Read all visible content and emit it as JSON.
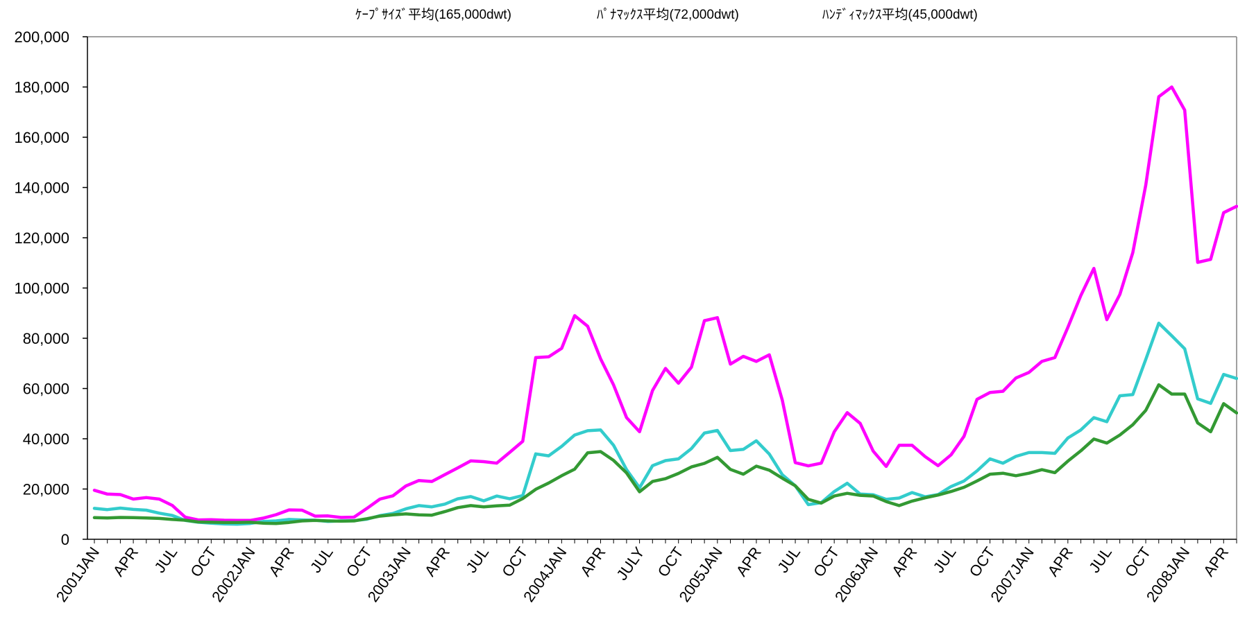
{
  "chart_data": {
    "type": "line",
    "title": "",
    "xlabel": "",
    "ylabel": "",
    "ylim": [
      0,
      200000
    ],
    "yticks": [
      0,
      20000,
      40000,
      60000,
      80000,
      100000,
      120000,
      140000,
      160000,
      180000,
      200000
    ],
    "ytick_labels": [
      "0",
      "20,000",
      "40,000",
      "60,000",
      "80,000",
      "100,000",
      "120,000",
      "140,000",
      "160,000",
      "180,000",
      "200,000"
    ],
    "x_tick_labels": [
      {
        "i": 0,
        "label": "2001JAN"
      },
      {
        "i": 3,
        "label": "APR"
      },
      {
        "i": 6,
        "label": "JUL"
      },
      {
        "i": 9,
        "label": "OCT"
      },
      {
        "i": 12,
        "label": "2002JAN"
      },
      {
        "i": 15,
        "label": "APR"
      },
      {
        "i": 18,
        "label": "JUL"
      },
      {
        "i": 21,
        "label": "OCT"
      },
      {
        "i": 24,
        "label": "2003JAN"
      },
      {
        "i": 27,
        "label": "APR"
      },
      {
        "i": 30,
        "label": "JUL"
      },
      {
        "i": 33,
        "label": "OCT"
      },
      {
        "i": 36,
        "label": "2004JAN"
      },
      {
        "i": 39,
        "label": "APR"
      },
      {
        "i": 42,
        "label": "JULY"
      },
      {
        "i": 45,
        "label": "OCT"
      },
      {
        "i": 48,
        "label": "2005JAN"
      },
      {
        "i": 51,
        "label": "APR"
      },
      {
        "i": 54,
        "label": "JUL"
      },
      {
        "i": 57,
        "label": "OCT"
      },
      {
        "i": 60,
        "label": "2006JAN"
      },
      {
        "i": 63,
        "label": "APR"
      },
      {
        "i": 66,
        "label": "JUL"
      },
      {
        "i": 69,
        "label": "OCT"
      },
      {
        "i": 72,
        "label": "2007JAN"
      },
      {
        "i": 75,
        "label": "APR"
      },
      {
        "i": 78,
        "label": "JUL"
      },
      {
        "i": 81,
        "label": "OCT"
      },
      {
        "i": 84,
        "label": "2008JAN"
      },
      {
        "i": 87,
        "label": "APR"
      }
    ],
    "grid": false,
    "legend_position": "top",
    "series": [
      {
        "name": "ｹｰﾌﾟｻｲｽﾞ平均(165,000dwt)",
        "color": "#ff00ff",
        "values": [
          19500,
          18000,
          17800,
          16000,
          16600,
          16000,
          13500,
          8800,
          7700,
          7800,
          7600,
          7500,
          7500,
          8400,
          9800,
          11700,
          11600,
          9200,
          9300,
          8700,
          8800,
          12300,
          16000,
          17300,
          21200,
          23400,
          23000,
          25700,
          28400,
          31200,
          30900,
          30300,
          34600,
          39000,
          72300,
          72600,
          76000,
          89000,
          84800,
          71800,
          61400,
          48400,
          42800,
          59200,
          68000,
          62100,
          68500,
          87000,
          88200,
          69700,
          72800,
          70800,
          73400,
          55400,
          30500,
          29200,
          30300,
          42800,
          50400,
          46100,
          35100,
          29000,
          37400,
          37400,
          32900,
          29300,
          33600,
          41000,
          55700,
          58400,
          58900,
          64200,
          66400,
          70800,
          72300,
          84300,
          97000,
          107800,
          87400,
          97400,
          114100,
          141000,
          176100,
          180000,
          170800,
          110200,
          111400,
          130000,
          132500
        ]
      },
      {
        "name": "ﾊﾟﾅﾏｯｸｽ平均(72,000dwt)",
        "color": "#33cccc",
        "values": [
          12300,
          11800,
          12400,
          11900,
          11600,
          10400,
          9500,
          7500,
          6800,
          6400,
          6100,
          6000,
          6300,
          7100,
          7300,
          7900,
          7700,
          7600,
          7100,
          7300,
          7400,
          8000,
          9400,
          10300,
          12100,
          13400,
          12900,
          14000,
          16100,
          17000,
          15300,
          17200,
          16100,
          17400,
          34000,
          33200,
          37000,
          41500,
          43200,
          43500,
          37400,
          27700,
          20500,
          29300,
          31300,
          32000,
          36100,
          42300,
          43300,
          35300,
          35800,
          39200,
          33900,
          25700,
          21300,
          13800,
          14600,
          19000,
          22300,
          18000,
          17700,
          15900,
          16400,
          18600,
          16900,
          17800,
          21000,
          23200,
          27200,
          32000,
          30300,
          33000,
          34500,
          34500,
          34200,
          40300,
          43500,
          48400,
          46800,
          57100,
          57600,
          71600,
          86000,
          81000,
          75800,
          55900,
          54100,
          65600,
          64000
        ]
      },
      {
        "name": "ﾊﾝﾃﾞｨﾏｯｸｽ平均(45,000dwt)",
        "color": "#339933",
        "values": [
          8600,
          8500,
          8700,
          8600,
          8500,
          8300,
          7900,
          7600,
          6900,
          6800,
          6700,
          6700,
          6800,
          6400,
          6300,
          6700,
          7300,
          7500,
          7300,
          7200,
          7300,
          8200,
          9200,
          9700,
          10100,
          9700,
          9600,
          11000,
          12600,
          13400,
          12900,
          13300,
          13600,
          16200,
          19900,
          22400,
          25300,
          27900,
          34400,
          34900,
          31400,
          26400,
          18900,
          23000,
          24100,
          26200,
          28800,
          30200,
          32600,
          27800,
          25900,
          29100,
          27500,
          24300,
          21300,
          15900,
          14400,
          17200,
          18300,
          17500,
          17200,
          15000,
          13400,
          15200,
          16500,
          17600,
          19000,
          20700,
          23200,
          25900,
          26300,
          25300,
          26300,
          27700,
          26500,
          31100,
          35200,
          39900,
          38300,
          41500,
          45600,
          51300,
          61500,
          57800,
          57800,
          46300,
          42800,
          54000,
          50300
        ]
      }
    ]
  }
}
